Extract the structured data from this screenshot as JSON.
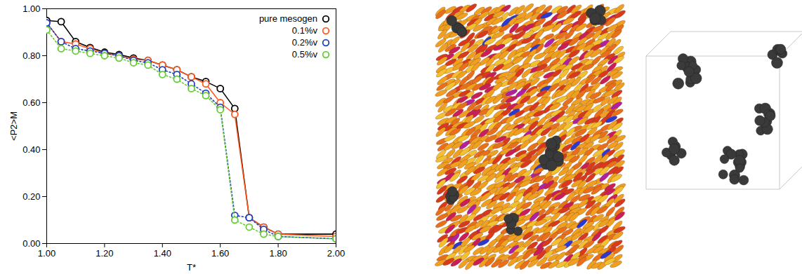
{
  "chart_data": {
    "type": "line",
    "x_label": "T*",
    "y_label": "<P2>M",
    "x": [
      1.0,
      1.05,
      1.1,
      1.15,
      1.2,
      1.25,
      1.3,
      1.35,
      1.4,
      1.45,
      1.5,
      1.55,
      1.6,
      1.65,
      1.7,
      1.75,
      1.8,
      2.0
    ],
    "series": [
      {
        "name": "pure mesogen",
        "color": "#000000",
        "marker": "circle",
        "line_style": "solid",
        "values": [
          0.95,
          0.945,
          0.86,
          0.835,
          0.815,
          0.805,
          0.79,
          0.78,
          0.76,
          0.74,
          0.71,
          0.69,
          0.66,
          0.575,
          0.11,
          0.07,
          0.04,
          0.04
        ]
      },
      {
        "name": "0.1%v",
        "color": "#ff5a1f",
        "marker": "circle",
        "line_style": "solid",
        "values": [
          0.94,
          0.86,
          0.85,
          0.83,
          0.81,
          0.8,
          0.785,
          0.78,
          0.76,
          0.74,
          0.71,
          0.68,
          0.6,
          0.55,
          0.11,
          0.07,
          0.04,
          0.03
        ]
      },
      {
        "name": "0.2%v",
        "color": "#2040c0",
        "marker": "circle",
        "line_style": "dotted",
        "values": [
          0.94,
          0.86,
          0.83,
          0.82,
          0.81,
          0.8,
          0.78,
          0.77,
          0.74,
          0.72,
          0.68,
          0.64,
          0.58,
          0.12,
          0.11,
          0.06,
          0.03,
          0.02
        ]
      },
      {
        "name": "0.5%v",
        "color": "#66cc33",
        "marker": "circle",
        "line_style": "dotted",
        "values": [
          0.91,
          0.83,
          0.82,
          0.81,
          0.8,
          0.79,
          0.77,
          0.76,
          0.72,
          0.7,
          0.66,
          0.63,
          0.57,
          0.1,
          0.07,
          0.04,
          0.03,
          0.02
        ]
      }
    ],
    "xlim": [
      1.0,
      2.0
    ],
    "xticks": [
      {
        "value": 1.0,
        "label": "1.00"
      },
      {
        "value": 1.2,
        "label": "1.20"
      },
      {
        "value": 1.4,
        "label": "1.40"
      },
      {
        "value": 1.6,
        "label": "1.60"
      },
      {
        "value": 1.8,
        "label": "1.80"
      },
      {
        "value": 2.0,
        "label": "2.00"
      }
    ],
    "ylim": [
      0,
      1
    ],
    "yticks": [
      {
        "value": 0,
        "label": "0.00"
      },
      {
        "value": 0.2,
        "label": "0.20"
      },
      {
        "value": 0.4,
        "label": "0.40"
      },
      {
        "value": 0.6,
        "label": "0.60"
      },
      {
        "value": 0.8,
        "label": "0.80"
      },
      {
        "value": 1,
        "label": "1.00"
      }
    ],
    "grid": false,
    "legend": "top-right"
  }
}
